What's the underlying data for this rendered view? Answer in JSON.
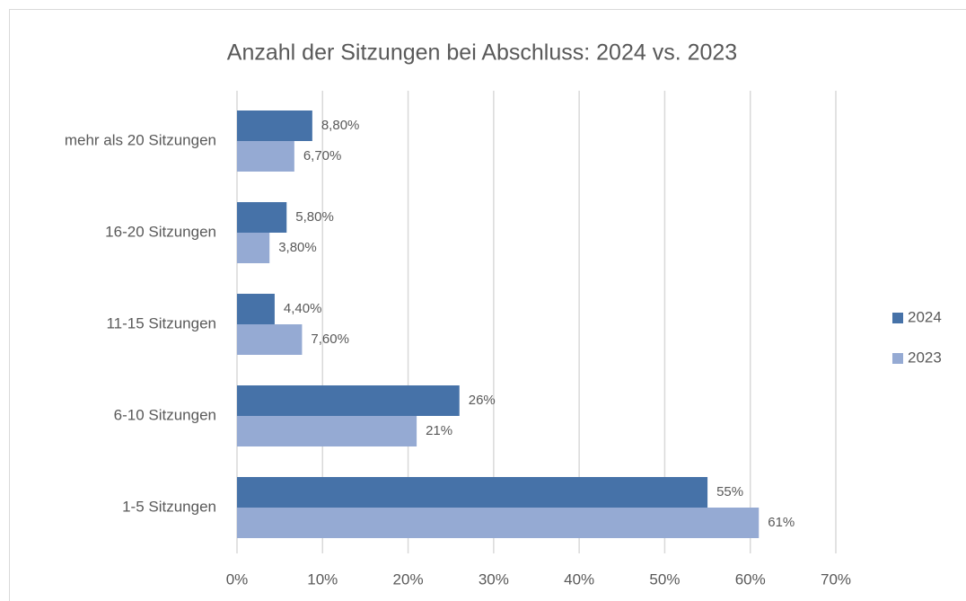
{
  "chart_data": {
    "type": "bar",
    "orientation": "horizontal",
    "title": "Anzahl der Sitzungen bei Abschluss: 2024 vs. 2023",
    "categories": [
      "mehr als 20 Sitzungen",
      "16-20 Sitzungen",
      "11-15 Sitzungen",
      "6-10 Sitzungen",
      "1-5 Sitzungen"
    ],
    "series": [
      {
        "name": "2024",
        "color": "#4672a8",
        "values": [
          8.8,
          5.8,
          4.4,
          26,
          55
        ],
        "value_labels": [
          "8,80%",
          "5,80%",
          "4,40%",
          "26%",
          "55%"
        ]
      },
      {
        "name": "2023",
        "color": "#95aad3",
        "values": [
          6.7,
          3.8,
          7.6,
          21,
          61
        ],
        "value_labels": [
          "6,70%",
          "3,80%",
          "7,60%",
          "21%",
          "61%"
        ]
      }
    ],
    "xlim": [
      0,
      70
    ],
    "xticks": [
      {
        "value": 0,
        "label": "0%"
      },
      {
        "value": 10,
        "label": "10%"
      },
      {
        "value": 20,
        "label": "20%"
      },
      {
        "value": 30,
        "label": "30%"
      },
      {
        "value": 40,
        "label": "40%"
      },
      {
        "value": 50,
        "label": "50%"
      },
      {
        "value": 60,
        "label": "60%"
      },
      {
        "value": 70,
        "label": "70%"
      }
    ],
    "grid": true,
    "legend": "right"
  }
}
